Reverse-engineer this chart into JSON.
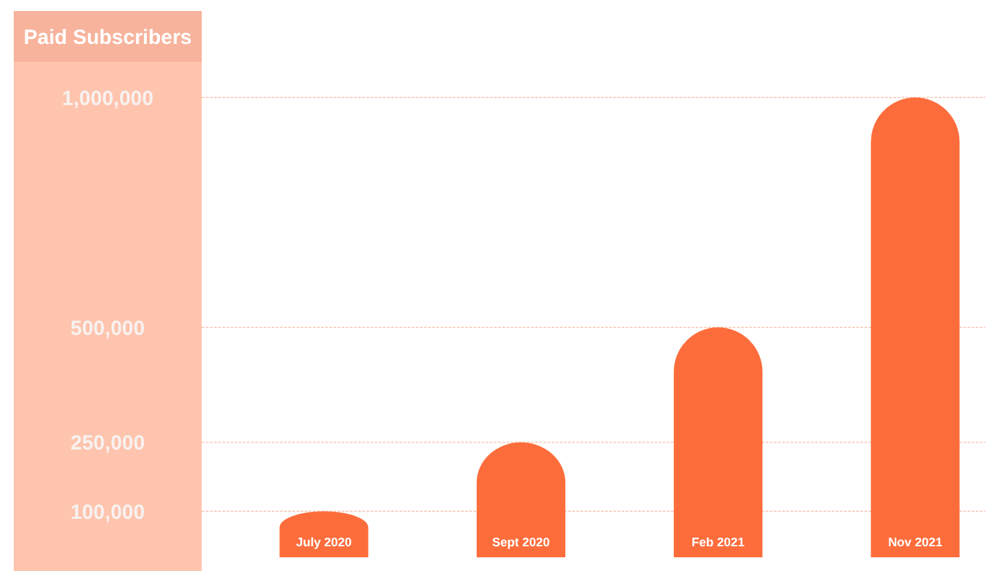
{
  "chart_data": {
    "type": "bar",
    "ylabel": "Paid Subscribers",
    "categories": [
      "July 2020",
      "Sept 2020",
      "Feb 2021",
      "Nov 2021"
    ],
    "values": [
      100000,
      250000,
      500000,
      1000000
    ],
    "color": "#fd6d3c",
    "ylim": [
      0,
      1000000
    ],
    "yticks": [
      {
        "value": 100000,
        "label": "100,000"
      },
      {
        "value": 250000,
        "label": "250,000"
      },
      {
        "value": 500000,
        "label": "500,000"
      },
      {
        "value": 1000000,
        "label": "1,000,000"
      }
    ],
    "grid": "y"
  }
}
